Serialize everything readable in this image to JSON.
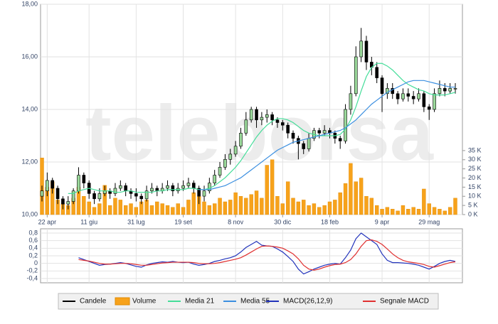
{
  "watermark": "teleborsa",
  "chart_data": [
    {
      "type": "candlestick",
      "categories": [
        null,
        "22 apr",
        null,
        null,
        null,
        null,
        null,
        null,
        null,
        "11 giu",
        null,
        null,
        null,
        null,
        null,
        null,
        null,
        null,
        "31 lug",
        null,
        null,
        null,
        null,
        null,
        null,
        null,
        null,
        "19 set",
        null,
        null,
        null,
        null,
        null,
        null,
        null,
        null,
        null,
        "8 nov",
        null,
        null,
        null,
        null,
        null,
        null,
        null,
        null,
        "30 dic",
        null,
        null,
        null,
        null,
        null,
        null,
        null,
        null,
        "18 feb",
        null,
        null,
        null,
        null,
        null,
        null,
        null,
        null,
        null,
        "9 apr",
        null,
        null,
        null,
        null,
        null,
        null,
        null,
        null,
        "29 mag",
        null,
        null,
        null,
        null,
        null
      ],
      "series": [
        {
          "name": "Candele",
          "type": "candlestick",
          "color": "#000000",
          "up_color": "#9ad89a",
          "open": [
            10.7,
            10.9,
            11.3,
            11.0,
            10.6,
            10.4,
            10.5,
            10.9,
            11.5,
            11.2,
            10.8,
            10.6,
            10.8,
            10.9,
            10.8,
            11.0,
            11.1,
            10.9,
            10.8,
            10.7,
            10.6,
            10.9,
            11.0,
            10.9,
            11.0,
            11.1,
            10.9,
            11.0,
            11.1,
            11.2,
            11.0,
            10.7,
            10.9,
            11.2,
            11.5,
            11.8,
            12.1,
            12.3,
            12.6,
            13.1,
            13.6,
            14.0,
            13.6,
            13.7,
            13.8,
            13.6,
            13.5,
            13.4,
            13.1,
            12.9,
            12.7,
            12.5,
            12.9,
            13.2,
            13.1,
            13.2,
            13.1,
            12.9,
            12.8,
            14.0,
            14.6,
            16.0,
            16.6,
            15.8,
            15.6,
            15.2,
            14.6,
            14.8,
            14.6,
            14.4,
            14.6,
            14.5,
            14.4,
            14.6,
            14.1,
            14.0,
            14.6,
            14.8,
            14.7,
            14.8
          ],
          "high": [
            11.1,
            11.6,
            11.4,
            11.1,
            10.7,
            10.7,
            11.0,
            11.8,
            11.6,
            11.3,
            10.9,
            11.0,
            11.1,
            11.0,
            11.2,
            11.3,
            11.2,
            11.0,
            11.0,
            10.8,
            11.1,
            11.2,
            11.1,
            11.2,
            11.3,
            11.2,
            11.2,
            11.3,
            11.4,
            11.3,
            11.1,
            11.1,
            11.4,
            11.7,
            12.0,
            12.3,
            12.5,
            12.8,
            13.3,
            13.9,
            14.1,
            14.1,
            13.9,
            14.0,
            13.9,
            13.7,
            13.6,
            13.5,
            13.2,
            13.0,
            12.8,
            13.1,
            13.3,
            13.3,
            13.4,
            13.3,
            13.2,
            13.0,
            14.2,
            14.9,
            16.4,
            17.1,
            16.8,
            16.0,
            15.8,
            15.3,
            15.0,
            15.0,
            14.7,
            14.8,
            14.8,
            14.7,
            14.8,
            14.7,
            14.2,
            14.8,
            15.1,
            15.0,
            15.0,
            15.0
          ],
          "low": [
            10.5,
            10.7,
            10.8,
            10.4,
            10.2,
            10.2,
            10.4,
            10.8,
            11.0,
            10.6,
            10.4,
            10.5,
            10.7,
            10.6,
            10.7,
            10.9,
            10.7,
            10.6,
            10.5,
            10.4,
            10.5,
            10.8,
            10.7,
            10.8,
            10.9,
            10.7,
            10.8,
            10.9,
            11.0,
            10.8,
            10.4,
            10.5,
            10.8,
            11.1,
            11.4,
            11.7,
            11.9,
            12.2,
            12.5,
            13.0,
            13.5,
            13.3,
            13.4,
            13.5,
            13.4,
            13.3,
            13.2,
            12.9,
            12.7,
            12.1,
            12.3,
            12.4,
            12.8,
            12.9,
            13.0,
            12.9,
            12.7,
            12.5,
            12.7,
            13.8,
            14.5,
            15.8,
            15.5,
            15.3,
            15.0,
            13.9,
            14.4,
            14.4,
            14.2,
            14.3,
            14.3,
            14.2,
            14.3,
            13.9,
            13.6,
            13.9,
            14.5,
            14.5,
            14.6,
            14.6
          ],
          "close": [
            10.9,
            11.3,
            11.0,
            10.6,
            10.4,
            10.5,
            10.9,
            11.5,
            11.2,
            10.8,
            10.6,
            10.8,
            10.9,
            10.8,
            11.0,
            11.1,
            10.9,
            10.8,
            10.7,
            10.6,
            10.9,
            11.0,
            10.9,
            11.0,
            11.1,
            10.9,
            11.0,
            11.1,
            11.2,
            11.0,
            10.7,
            10.9,
            11.2,
            11.5,
            11.8,
            12.1,
            12.3,
            12.6,
            13.1,
            13.6,
            14.0,
            13.6,
            13.7,
            13.8,
            13.6,
            13.5,
            13.4,
            13.1,
            12.9,
            12.7,
            12.5,
            12.9,
            13.2,
            13.1,
            13.2,
            13.1,
            12.9,
            12.8,
            14.0,
            14.6,
            16.0,
            16.6,
            15.8,
            15.6,
            15.2,
            14.6,
            14.8,
            14.6,
            14.4,
            14.6,
            14.5,
            14.4,
            14.6,
            14.1,
            14.0,
            14.6,
            14.8,
            14.7,
            14.8,
            14.8
          ]
        },
        {
          "name": "Volume",
          "type": "bar",
          "axis": "y2",
          "color": "#f7a21b",
          "values": [
            31000,
            15000,
            18000,
            8000,
            6000,
            5000,
            9000,
            15000,
            10000,
            7000,
            4000,
            6000,
            16000,
            5000,
            9000,
            8000,
            5000,
            6000,
            4000,
            7000,
            8000,
            5000,
            7000,
            6000,
            5000,
            4000,
            6000,
            4000,
            8000,
            12000,
            10000,
            7000,
            5000,
            6000,
            9000,
            7000,
            8000,
            12000,
            10000,
            9000,
            11000,
            13000,
            9000,
            27000,
            30000,
            10000,
            6000,
            18000,
            9000,
            7000,
            8000,
            5000,
            6000,
            4000,
            5000,
            7000,
            8000,
            12000,
            17000,
            28000,
            18000,
            20000,
            10000,
            9000,
            5000,
            3000,
            4000,
            3000,
            2000,
            5000,
            3000,
            4000,
            3000,
            14000,
            6000,
            4000,
            3000,
            2000,
            4000,
            9000
          ]
        },
        {
          "name": "Media 21",
          "type": "line",
          "color": "#44dd99",
          "values": [
            null,
            null,
            null,
            null,
            null,
            10.8,
            10.8,
            10.9,
            10.95,
            11.0,
            10.95,
            10.9,
            10.9,
            10.9,
            10.85,
            10.85,
            10.9,
            10.9,
            10.85,
            10.85,
            10.85,
            10.85,
            10.9,
            10.9,
            10.95,
            10.95,
            10.95,
            10.95,
            11.0,
            11.0,
            10.95,
            10.95,
            11.0,
            11.1,
            11.25,
            11.4,
            11.6,
            11.8,
            12.05,
            12.35,
            12.65,
            12.95,
            13.2,
            13.4,
            13.55,
            13.65,
            13.65,
            13.6,
            13.5,
            13.35,
            13.2,
            13.1,
            13.05,
            13.0,
            13.0,
            13.0,
            13.0,
            13.05,
            13.25,
            13.6,
            14.1,
            14.7,
            15.25,
            15.6,
            15.75,
            15.75,
            15.65,
            15.5,
            15.3,
            15.1,
            14.95,
            14.85,
            14.75,
            14.7,
            14.6,
            14.55,
            14.55,
            14.55,
            14.6,
            14.65
          ]
        },
        {
          "name": "Media 55",
          "type": "line",
          "color": "#3b8fe0",
          "values": [
            null,
            null,
            null,
            null,
            null,
            null,
            null,
            null,
            null,
            null,
            null,
            null,
            null,
            null,
            null,
            null,
            null,
            null,
            null,
            null,
            null,
            null,
            null,
            null,
            null,
            null,
            null,
            null,
            null,
            null,
            10.95,
            10.95,
            10.95,
            11.0,
            11.05,
            11.1,
            11.2,
            11.3,
            11.4,
            11.55,
            11.7,
            11.85,
            12.0,
            12.15,
            12.3,
            12.45,
            12.55,
            12.65,
            12.75,
            12.8,
            12.85,
            12.9,
            12.95,
            13.0,
            13.05,
            13.1,
            13.15,
            13.2,
            13.3,
            13.45,
            13.6,
            13.8,
            14.0,
            14.2,
            14.35,
            14.5,
            14.65,
            14.75,
            14.85,
            14.95,
            15.05,
            15.1,
            15.1,
            15.1,
            15.05,
            15.0,
            14.95,
            14.9,
            14.85,
            14.85
          ]
        }
      ],
      "ylim": [
        10,
        18
      ],
      "yticks": [
        {
          "value": 10,
          "label": "10,00"
        },
        {
          "value": 12,
          "label": "12,00"
        },
        {
          "value": 14,
          "label": "14,00"
        },
        {
          "value": 16,
          "label": "16,00"
        },
        {
          "value": 18,
          "label": "18,00"
        }
      ],
      "y2lim": [
        0,
        115000
      ],
      "y2ticks": [
        {
          "value": 0,
          "label": "0 K"
        },
        {
          "value": 5000,
          "label": "5 K"
        },
        {
          "value": 10000,
          "label": "10 K"
        },
        {
          "value": 15000,
          "label": "15 K"
        },
        {
          "value": 20000,
          "label": "20 K"
        },
        {
          "value": 25000,
          "label": "25 K"
        },
        {
          "value": 30000,
          "label": "30 K"
        },
        {
          "value": 35000,
          "label": "35 K"
        }
      ],
      "grid": true
    },
    {
      "type": "line",
      "series": [
        {
          "name": "MACD(26,12,9)",
          "color": "#2233bb",
          "values": [
            null,
            null,
            null,
            null,
            null,
            null,
            null,
            0.15,
            0.1,
            0.05,
            0.0,
            -0.05,
            -0.03,
            -0.02,
            0.0,
            0.02,
            0.0,
            -0.04,
            -0.08,
            -0.1,
            -0.04,
            0.0,
            0.02,
            0.04,
            0.03,
            0.05,
            0.03,
            0.02,
            0.03,
            -0.02,
            -0.05,
            -0.03,
            0.0,
            0.05,
            0.08,
            0.12,
            0.15,
            0.2,
            0.3,
            0.42,
            0.5,
            0.58,
            0.48,
            0.46,
            0.45,
            0.38,
            0.3,
            0.18,
            0.05,
            -0.15,
            -0.28,
            -0.22,
            -0.15,
            -0.1,
            -0.05,
            -0.02,
            0.0,
            -0.02,
            0.15,
            0.35,
            0.65,
            0.8,
            0.7,
            0.6,
            0.5,
            0.25,
            0.08,
            0.02,
            0.02,
            0.01,
            0.0,
            -0.02,
            -0.05,
            -0.1,
            -0.15,
            -0.08,
            0.0,
            0.05,
            0.08,
            0.05
          ]
        },
        {
          "name": "Segnale MACD",
          "color": "#e03030",
          "values": [
            null,
            null,
            null,
            null,
            null,
            null,
            null,
            0.1,
            0.08,
            0.06,
            0.03,
            0.0,
            -0.02,
            -0.02,
            -0.01,
            0.0,
            0.0,
            -0.01,
            -0.03,
            -0.05,
            -0.05,
            -0.03,
            -0.01,
            0.01,
            0.02,
            0.03,
            0.03,
            0.03,
            0.03,
            0.02,
            0.0,
            -0.01,
            -0.01,
            0.0,
            0.02,
            0.05,
            0.08,
            0.11,
            0.15,
            0.22,
            0.3,
            0.38,
            0.45,
            0.46,
            0.45,
            0.43,
            0.4,
            0.33,
            0.25,
            0.12,
            -0.05,
            -0.15,
            -0.18,
            -0.15,
            -0.1,
            -0.06,
            -0.03,
            -0.02,
            0.02,
            0.1,
            0.25,
            0.45,
            0.6,
            0.62,
            0.58,
            0.5,
            0.38,
            0.25,
            0.15,
            0.08,
            0.04,
            0.02,
            0.0,
            -0.03,
            -0.08,
            -0.1,
            -0.06,
            -0.02,
            0.02,
            0.04
          ]
        }
      ],
      "ylim": [
        -0.4,
        0.8
      ],
      "yticks": [
        {
          "value": -0.4,
          "label": "-0,4"
        },
        {
          "value": -0.2,
          "label": "-0,2"
        },
        0,
        {
          "value": 0.2,
          "label": "0,2"
        },
        {
          "value": 0.4,
          "label": "0,4"
        },
        {
          "value": 0.6,
          "label": "0,6"
        },
        {
          "value": 0.8,
          "label": "0,8"
        }
      ],
      "grid": true
    }
  ]
}
